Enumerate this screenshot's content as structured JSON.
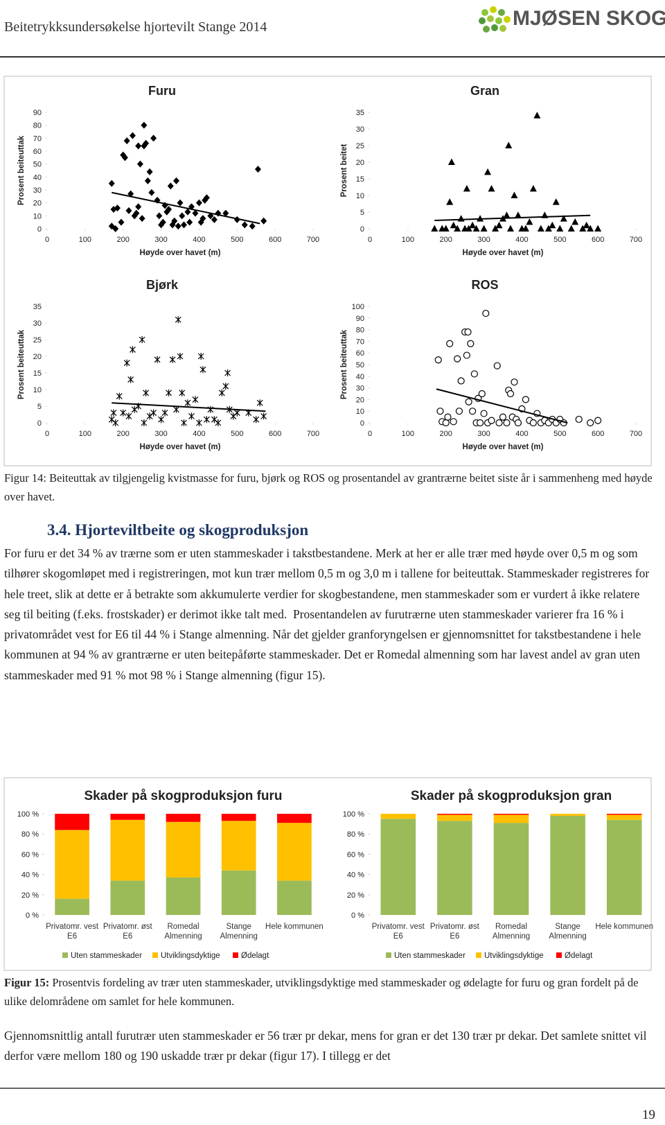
{
  "header": {
    "title": "Beitetrykksundersøkelse hjortevilt Stange 2014",
    "logo": "MJØSEN SKOG"
  },
  "chart_data": [
    {
      "type": "scatter",
      "title": "Furu",
      "xlabel": "Høyde over havet (m)",
      "ylabel": "Prosent beiteuttak",
      "marker": "diamond",
      "color": "#000000",
      "x": [
        170,
        170,
        175,
        180,
        185,
        195,
        200,
        205,
        210,
        215,
        220,
        225,
        230,
        235,
        240,
        240,
        245,
        250,
        255,
        255,
        260,
        265,
        270,
        275,
        280,
        290,
        295,
        300,
        305,
        310,
        315,
        320,
        325,
        330,
        335,
        340,
        345,
        350,
        355,
        360,
        370,
        375,
        380,
        390,
        400,
        405,
        410,
        415,
        420,
        430,
        440,
        450,
        470,
        500,
        520,
        540,
        555,
        570
      ],
      "values": [
        35,
        2,
        15,
        0,
        16,
        5,
        57,
        55,
        68,
        14,
        27,
        72,
        10,
        12,
        17,
        64,
        50,
        8,
        80,
        64,
        66,
        37,
        44,
        28,
        70,
        22,
        10,
        3,
        5,
        18,
        13,
        15,
        33,
        3,
        6,
        37,
        2,
        20,
        10,
        3,
        13,
        5,
        17,
        12,
        20,
        5,
        8,
        22,
        24,
        10,
        7,
        12,
        12,
        7,
        3,
        2,
        46,
        6
      ],
      "trendline": {
        "x": [
          170,
          560
        ],
        "values": [
          28,
          4
        ]
      },
      "xlim": [
        0,
        700
      ],
      "xticks": [
        0,
        100,
        200,
        300,
        400,
        500,
        600,
        700
      ],
      "ylim": [
        0,
        90
      ],
      "yticks": [
        0,
        10,
        20,
        30,
        40,
        50,
        60,
        70,
        80,
        90
      ]
    },
    {
      "type": "scatter",
      "title": "Gran",
      "xlabel": "Høyde over havet (m)",
      "ylabel": "Prosent beitet",
      "marker": "triangle",
      "color": "#000000",
      "x": [
        170,
        190,
        200,
        210,
        215,
        220,
        230,
        240,
        250,
        255,
        260,
        270,
        280,
        290,
        300,
        310,
        320,
        330,
        340,
        350,
        360,
        365,
        370,
        380,
        390,
        400,
        410,
        420,
        430,
        440,
        450,
        460,
        470,
        480,
        490,
        500,
        510,
        530,
        540,
        560,
        570,
        580,
        600
      ],
      "values": [
        0,
        0,
        0,
        8,
        20,
        1,
        0,
        3,
        0,
        12,
        0,
        1,
        0,
        3,
        0,
        17,
        12,
        0,
        1,
        3,
        4,
        25,
        0,
        10,
        4,
        0,
        0,
        2,
        12,
        34,
        0,
        4,
        0,
        1,
        8,
        0,
        3,
        0,
        2,
        0,
        1,
        0,
        0
      ],
      "trendline": {
        "x": [
          170,
          580
        ],
        "values": [
          2.5,
          4
        ]
      },
      "xlim": [
        0,
        700
      ],
      "xticks": [
        0,
        100,
        200,
        300,
        400,
        500,
        600,
        700
      ],
      "ylim": [
        0,
        35
      ],
      "yticks": [
        0,
        5,
        10,
        15,
        20,
        25,
        30,
        35
      ]
    },
    {
      "type": "scatter",
      "title": "Bjørk",
      "xlabel": "Høyde over havet (m)",
      "ylabel": "Prosent beiteuttak",
      "marker": "asterisk",
      "color": "#000000",
      "x": [
        170,
        175,
        180,
        190,
        200,
        210,
        215,
        220,
        225,
        230,
        240,
        250,
        255,
        260,
        270,
        280,
        290,
        300,
        310,
        320,
        330,
        340,
        345,
        350,
        355,
        360,
        370,
        380,
        390,
        400,
        405,
        410,
        420,
        430,
        440,
        450,
        460,
        470,
        475,
        480,
        490,
        500,
        530,
        550,
        560,
        570
      ],
      "values": [
        1,
        3,
        0,
        8,
        3,
        18,
        2,
        13,
        22,
        4,
        5,
        25,
        0,
        9,
        2,
        3,
        19,
        1,
        3,
        9,
        19,
        4,
        31,
        20,
        9,
        0,
        6,
        2,
        7,
        0,
        20,
        16,
        1,
        4,
        1,
        0,
        9,
        11,
        15,
        4,
        2,
        3,
        3,
        1,
        6,
        2
      ],
      "trendline": {
        "x": [
          170,
          575
        ],
        "values": [
          6,
          3.5
        ]
      },
      "xlim": [
        0,
        700
      ],
      "xticks": [
        0,
        100,
        200,
        300,
        400,
        500,
        600,
        700
      ],
      "ylim": [
        0,
        35
      ],
      "yticks": [
        0,
        5,
        10,
        15,
        20,
        25,
        30,
        35
      ]
    },
    {
      "type": "scatter",
      "title": "ROS",
      "xlabel": "Høyde over havet (m)",
      "ylabel": "Prosent beiteuttak",
      "marker": "circle",
      "color": "#000000",
      "x": [
        180,
        185,
        190,
        200,
        205,
        210,
        220,
        230,
        235,
        240,
        250,
        255,
        258,
        260,
        265,
        270,
        275,
        280,
        285,
        290,
        295,
        300,
        305,
        310,
        320,
        335,
        340,
        350,
        360,
        365,
        370,
        375,
        380,
        385,
        390,
        400,
        410,
        420,
        430,
        440,
        450,
        460,
        470,
        480,
        490,
        500,
        510,
        550,
        580,
        600
      ],
      "values": [
        54,
        10,
        1,
        0,
        5,
        68,
        1,
        55,
        10,
        36,
        78,
        58,
        78,
        18,
        68,
        10,
        42,
        0,
        21,
        0,
        25,
        8,
        94,
        0,
        2,
        49,
        0,
        5,
        0,
        28,
        25,
        5,
        35,
        3,
        0,
        12,
        20,
        2,
        0,
        8,
        0,
        2,
        0,
        3,
        0,
        3,
        0,
        3,
        0,
        2
      ],
      "trendline": {
        "x": [
          175,
          520
        ],
        "values": [
          29,
          0
        ]
      },
      "xlim": [
        0,
        700
      ],
      "xticks": [
        0,
        100,
        200,
        300,
        400,
        500,
        600,
        700
      ],
      "ylim": [
        0,
        100
      ],
      "yticks": [
        0,
        10,
        20,
        30,
        40,
        50,
        60,
        70,
        80,
        90,
        100
      ]
    },
    {
      "type": "stacked_bar",
      "title": "Skader på skogproduksjon furu",
      "categories": [
        "Privatomr. vest E6",
        "Privatomr. øst E6",
        "Romedal Almenning",
        "Stange Almenning",
        "Hele kommunen"
      ],
      "series": [
        {
          "name": "Uten stammeskader",
          "color": "#9bbb59",
          "values": [
            16,
            34,
            37,
            44,
            34
          ]
        },
        {
          "name": "Utviklingsdyktige",
          "color": "#ffc000",
          "values": [
            68,
            60,
            55,
            49,
            57
          ]
        },
        {
          "name": "Ødelagt",
          "color": "#ff0000",
          "values": [
            16,
            6,
            8,
            7,
            9
          ]
        }
      ],
      "ylim": [
        0,
        100
      ],
      "yticks": [
        {
          "value": 0,
          "label": "0 %"
        },
        {
          "value": 20,
          "label": "20 %"
        },
        {
          "value": 40,
          "label": "40 %"
        },
        {
          "value": 60,
          "label": "60 %"
        },
        {
          "value": 80,
          "label": "80 %"
        },
        {
          "value": 100,
          "label": "100 %"
        }
      ]
    },
    {
      "type": "stacked_bar",
      "title": "Skader på skogproduksjon gran",
      "categories": [
        "Privatomr. vest E6",
        "Privatomr. øst E6",
        "Romedal Almenning",
        "Stange Almenning",
        "Hele kommunen"
      ],
      "series": [
        {
          "name": "Uten stammeskader",
          "color": "#9bbb59",
          "values": [
            95,
            93,
            91,
            98,
            94
          ]
        },
        {
          "name": "Utviklingsdyktige",
          "color": "#ffc000",
          "values": [
            5,
            6,
            8,
            2,
            5
          ]
        },
        {
          "name": "Ødelagt",
          "color": "#ff0000",
          "values": [
            0,
            1,
            1,
            0,
            1
          ]
        }
      ],
      "ylim": [
        0,
        100
      ],
      "yticks": [
        {
          "value": 0,
          "label": "0 %"
        },
        {
          "value": 20,
          "label": "20 %"
        },
        {
          "value": 40,
          "label": "40 %"
        },
        {
          "value": 60,
          "label": "60 %"
        },
        {
          "value": 80,
          "label": "80 %"
        },
        {
          "value": 100,
          "label": "100 %"
        }
      ]
    }
  ],
  "figure14": {
    "label": "Figur 14:",
    "text": "Beiteuttak av tilgjengelig kvistmasse for furu, bjørk og ROS og prosentandel av grantrærne beitet siste år i sammenheng med høyde over havet."
  },
  "section": {
    "number": "3.4.",
    "title": "Hjorteviltbeite og skogproduksjon"
  },
  "paragraph1": "For furu er det 34 % av trærne som er uten stammeskader i takstbestandene. Merk at her er alle trær med høyde over 0,5 m og som tilhører skogomløpet med i registreringen, mot kun trær mellom 0,5 m og 3,0 m i tallene for beiteuttak. Stammeskader registreres for hele treet, slik at dette er å betrakte som akkumulerte verdier for skogbestandene, men stammeskader som er vurdert å ikke relatere seg til beiting (f.eks. frostskader) er derimot ikke talt med.  Prosentandelen av furutrærne uten stammeskader varierer fra 16 % i privatområdet vest for E6 til 44 % i Stange almenning. Når det gjelder granforyngelsen er gjennomsnittet for takstbestandene i hele kommunen at 94 % av grantrærne er uten beitepåførte stammeskader. Det er Romedal almenning som har lavest andel av gran uten stammeskader med 91 % mot 98 % i Stange almenning (figur 15).",
  "figure15": {
    "label": "Figur 15:",
    "text": "Prosentvis fordeling av trær uten stammeskader, utviklingsdyktige med stammeskader og ødelagte for furu og gran fordelt på de ulike delområdene om samlet for hele kommunen."
  },
  "paragraph2": "Gjennomsnittlig antall furutrær uten stammeskader er 56 trær pr dekar, mens for gran er det 130 trær pr dekar. Det samlete snittet vil derfor være mellom 180 og 190 uskadde trær pr dekar (figur 17). I tillegg er det",
  "page_number": "19"
}
